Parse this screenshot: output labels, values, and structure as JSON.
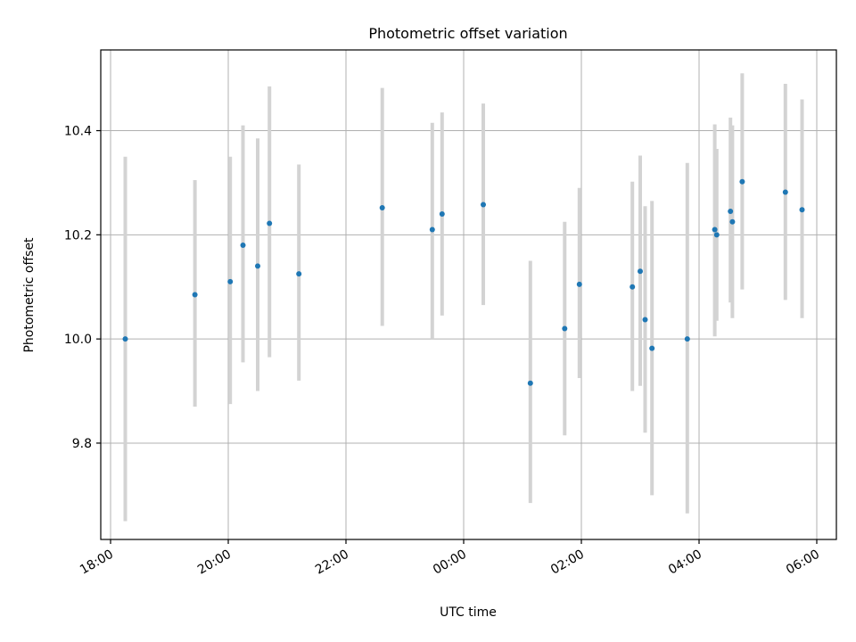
{
  "chart_data": {
    "type": "scatter",
    "title": "Photometric offset variation",
    "xlabel": "UTC time",
    "ylabel": "Photometric offset",
    "x_range": [
      "17:50",
      "06:20"
    ],
    "ylim": [
      9.615,
      10.555
    ],
    "grid": true,
    "x_ticks": [
      {
        "value": "18:00",
        "label": "18:00"
      },
      {
        "value": "20:00",
        "label": "20:00"
      },
      {
        "value": "22:00",
        "label": "22:00"
      },
      {
        "value": "00:00",
        "label": "00:00"
      },
      {
        "value": "02:00",
        "label": "02:00"
      },
      {
        "value": "04:00",
        "label": "04:00"
      },
      {
        "value": "06:00",
        "label": "06:00"
      }
    ],
    "y_ticks": [
      {
        "value": 9.8,
        "label": "9.8"
      },
      {
        "value": 10.0,
        "label": "10.0"
      },
      {
        "value": 10.2,
        "label": "10.2"
      },
      {
        "value": 10.4,
        "label": "10.4"
      }
    ],
    "colors": {
      "point": "#1f77b4",
      "error": "#d3d3d3"
    },
    "points": [
      {
        "time": "18:15",
        "y": 10.0,
        "err_lo": 9.65,
        "err_hi": 10.35
      },
      {
        "time": "19:26",
        "y": 10.085,
        "err_lo": 9.87,
        "err_hi": 10.305
      },
      {
        "time": "20:02",
        "y": 10.11,
        "err_lo": 9.875,
        "err_hi": 10.35
      },
      {
        "time": "20:15",
        "y": 10.18,
        "err_lo": 9.955,
        "err_hi": 10.41
      },
      {
        "time": "20:30",
        "y": 10.14,
        "err_lo": 9.9,
        "err_hi": 10.385
      },
      {
        "time": "20:42",
        "y": 10.222,
        "err_lo": 9.965,
        "err_hi": 10.485
      },
      {
        "time": "21:12",
        "y": 10.125,
        "err_lo": 9.92,
        "err_hi": 10.335
      },
      {
        "time": "22:37",
        "y": 10.252,
        "err_lo": 10.025,
        "err_hi": 10.482
      },
      {
        "time": "23:28",
        "y": 10.21,
        "err_lo": 10.0,
        "err_hi": 10.415
      },
      {
        "time": "23:38",
        "y": 10.24,
        "err_lo": 10.045,
        "err_hi": 10.435
      },
      {
        "time": "00:20",
        "y": 10.258,
        "err_lo": 10.065,
        "err_hi": 10.452
      },
      {
        "time": "01:08",
        "y": 9.915,
        "err_lo": 9.685,
        "err_hi": 10.15
      },
      {
        "time": "01:43",
        "y": 10.02,
        "err_lo": 9.815,
        "err_hi": 10.225
      },
      {
        "time": "01:58",
        "y": 10.105,
        "err_lo": 9.925,
        "err_hi": 10.29
      },
      {
        "time": "02:52",
        "y": 10.1,
        "err_lo": 9.9,
        "err_hi": 10.302
      },
      {
        "time": "03:00",
        "y": 10.13,
        "err_lo": 9.91,
        "err_hi": 10.352
      },
      {
        "time": "03:05",
        "y": 10.037,
        "err_lo": 9.82,
        "err_hi": 10.255
      },
      {
        "time": "03:12",
        "y": 9.982,
        "err_lo": 9.7,
        "err_hi": 10.265
      },
      {
        "time": "03:48",
        "y": 10.0,
        "err_lo": 9.665,
        "err_hi": 10.338
      },
      {
        "time": "04:16",
        "y": 10.21,
        "err_lo": 10.005,
        "err_hi": 10.412
      },
      {
        "time": "04:18",
        "y": 10.2,
        "err_lo": 10.035,
        "err_hi": 10.365
      },
      {
        "time": "04:32",
        "y": 10.245,
        "err_lo": 10.07,
        "err_hi": 10.425
      },
      {
        "time": "04:34",
        "y": 10.225,
        "err_lo": 10.04,
        "err_hi": 10.41
      },
      {
        "time": "04:44",
        "y": 10.302,
        "err_lo": 10.095,
        "err_hi": 10.51
      },
      {
        "time": "05:28",
        "y": 10.282,
        "err_lo": 10.075,
        "err_hi": 10.49
      },
      {
        "time": "05:45",
        "y": 10.248,
        "err_lo": 10.04,
        "err_hi": 10.46
      }
    ]
  }
}
